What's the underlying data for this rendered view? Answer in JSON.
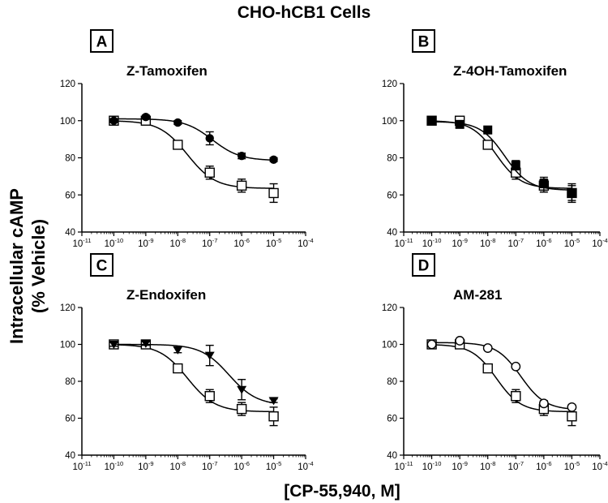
{
  "chart_data": {
    "type": "scatter",
    "suptitle": "CHO-hCB1 Cells",
    "ylabel_line1": "Intracellular cAMP",
    "ylabel_line2": "(% Vehicle)",
    "xlabel": "[CP-55,940, M]",
    "xscale": "log",
    "xlim": [
      1e-11,
      0.0001
    ],
    "ylim": [
      40,
      120
    ],
    "x_ticks": [
      "10-11",
      "10-10",
      "10-9",
      "10-8",
      "10-7",
      "10-6",
      "10-5",
      "10-4"
    ],
    "y_ticks": [
      "40",
      "60",
      "80",
      "100",
      "120"
    ],
    "grid": false,
    "panels": [
      {
        "letter": "A",
        "title": "Z-Tamoxifen",
        "series": [
          {
            "marker": "open-square",
            "x": [
              1e-10,
              1e-09,
              1e-08,
              1e-07,
              1e-06,
              1e-05
            ],
            "y": [
              100,
              100,
              87,
              72,
              65,
              61
            ],
            "err": [
              1.5,
              1.5,
              2,
              3.5,
              3.5,
              5
            ],
            "fit": {
              "top": 100,
              "bottom": 63.5,
              "ec50": 2e-08,
              "hill": 1
            }
          },
          {
            "marker": "filled-circle",
            "x": [
              1e-10,
              1e-09,
              1e-08,
              1e-07,
              1e-06,
              1e-05
            ],
            "y": [
              100,
              102,
              99,
              90.5,
              81,
              79
            ],
            "err": [
              1,
              1,
              1,
              3.5,
              1.5,
              1
            ],
            "fit": {
              "top": 101,
              "bottom": 78.5,
              "ec50": 1.2e-07,
              "hill": 1
            }
          }
        ]
      },
      {
        "letter": "B",
        "title": "Z-4OH-Tamoxifen",
        "series": [
          {
            "marker": "open-square",
            "x": [
              1e-10,
              1e-09,
              1e-08,
              1e-07,
              1e-06,
              1e-05
            ],
            "y": [
              100,
              100,
              87,
              72,
              65,
              61
            ],
            "err": [
              1.5,
              1.5,
              2,
              3.5,
              3.5,
              5
            ],
            "fit": {
              "top": 100,
              "bottom": 63.5,
              "ec50": 2e-08,
              "hill": 1
            }
          },
          {
            "marker": "filled-square",
            "x": [
              1e-10,
              1e-09,
              1e-08,
              1e-07,
              1e-06,
              1e-05
            ],
            "y": [
              100,
              98,
              95,
              76,
              66,
              61
            ],
            "err": [
              1,
              1.5,
              1,
              2.5,
              3.5,
              4
            ],
            "fit": {
              "top": 99.5,
              "bottom": 62.5,
              "ec50": 4e-08,
              "hill": 1
            }
          }
        ]
      },
      {
        "letter": "C",
        "title": "Z-Endoxifen",
        "series": [
          {
            "marker": "open-square",
            "x": [
              1e-10,
              1e-09,
              1e-08,
              1e-07,
              1e-06,
              1e-05
            ],
            "y": [
              100,
              100,
              87,
              72,
              65,
              61
            ],
            "err": [
              1.5,
              1.5,
              2,
              3.5,
              3.5,
              5
            ],
            "fit": {
              "top": 100,
              "bottom": 63.5,
              "ec50": 2e-08,
              "hill": 1
            }
          },
          {
            "marker": "filled-triangle-down",
            "x": [
              1e-10,
              1e-09,
              1e-08,
              1e-07,
              1e-06,
              1e-05
            ],
            "y": [
              100,
              100.5,
              97,
              94,
              75.5,
              69.5
            ],
            "err": [
              1,
              1,
              1.5,
              5.5,
              5.5,
              1
            ],
            "fit": {
              "top": 100,
              "bottom": 67,
              "ec50": 4e-07,
              "hill": 1
            }
          }
        ]
      },
      {
        "letter": "D",
        "title": "AM-281",
        "series": [
          {
            "marker": "open-square",
            "x": [
              1e-10,
              1e-09,
              1e-08,
              1e-07,
              1e-06,
              1e-05
            ],
            "y": [
              100,
              100,
              87,
              72,
              65,
              61
            ],
            "err": [
              1.5,
              1.5,
              2,
              3.5,
              3.5,
              5
            ],
            "fit": {
              "top": 100,
              "bottom": 63.5,
              "ec50": 2e-08,
              "hill": 1
            }
          },
          {
            "marker": "open-circle",
            "x": [
              1e-10,
              1e-09,
              1e-08,
              1e-07,
              1e-06,
              1e-05
            ],
            "y": [
              100,
              102,
              98,
              88,
              68,
              66
            ],
            "err": [
              1,
              1,
              1,
              1,
              1.5,
              1
            ],
            "fit": {
              "top": 101,
              "bottom": 64.5,
              "ec50": 1.5e-07,
              "hill": 1
            }
          }
        ]
      }
    ]
  }
}
